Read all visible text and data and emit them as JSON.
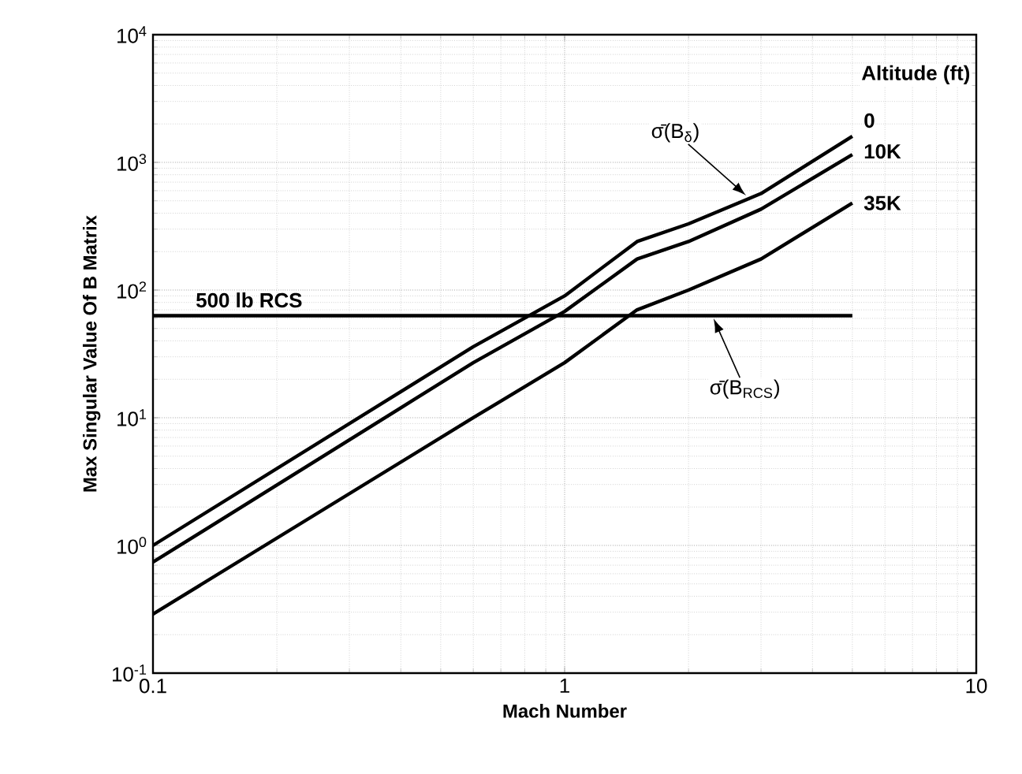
{
  "chart_data": {
    "type": "line",
    "xlabel": "Mach Number",
    "ylabel": "Max Singular Value Of B Matrix",
    "legend_title": "Altitude (ft)",
    "log": "xy",
    "grid": true,
    "marker": "none",
    "line_style": "solid",
    "xlim": [
      0.1,
      10
    ],
    "ylim": [
      0.1,
      10000
    ],
    "xticks": [
      0.1,
      1,
      10
    ],
    "yticks": [
      {
        "value": 0.1,
        "label": "10$^{-1}$"
      },
      {
        "value": 1,
        "label": "10$^{0}$"
      },
      {
        "value": 10,
        "label": "10$^{1}$"
      },
      {
        "value": 100,
        "label": "10$^{2}$"
      },
      {
        "value": 1000,
        "label": "10$^{3}$"
      },
      {
        "value": 10000,
        "label": "10$^{4}$"
      }
    ],
    "series": [
      {
        "name": "0",
        "color": "#000000",
        "x": [
          0.1,
          0.6,
          1,
          1.5,
          2,
          3,
          5
        ],
        "values": [
          1.0,
          36,
          90,
          240,
          330,
          570,
          1600
        ]
      },
      {
        "name": "10K",
        "color": "#000000",
        "x": [
          0.1,
          0.6,
          1,
          1.5,
          2,
          3,
          5
        ],
        "values": [
          0.74,
          27,
          68,
          175,
          240,
          430,
          1150
        ]
      },
      {
        "name": "35K",
        "color": "#000000",
        "x": [
          0.1,
          0.6,
          1,
          1.5,
          2,
          3,
          5
        ],
        "values": [
          0.29,
          10,
          27,
          70,
          100,
          175,
          480
        ]
      },
      {
        "name": "500 lb RCS",
        "color": "#000000",
        "x": [
          0.1,
          5
        ],
        "values": [
          63,
          63
        ]
      }
    ],
    "annotations": [
      {
        "text": "σ̄(B$_{δ}$)",
        "x": 2.76,
        "y": 550
      },
      {
        "text": "σ̄(B$_{RCS}$)",
        "x": 2.3,
        "y": 60
      }
    ]
  }
}
